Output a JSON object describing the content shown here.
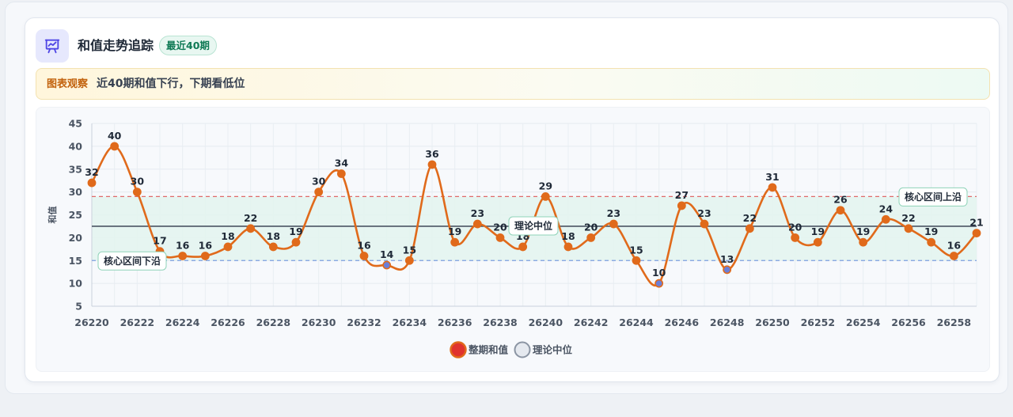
{
  "header": {
    "title": "和值走势追踪",
    "badge": "最近40期"
  },
  "observation": {
    "tag": "图表观察",
    "text": "近40期和值下行，下期看低位"
  },
  "icons": {
    "header": "presentation-chart-icon"
  },
  "colors": {
    "line": "#e06a1b",
    "point": "#e06a1b",
    "point_low": "#6b7fd8",
    "band": "#e3f5ee",
    "upper_line": "#e06a6a",
    "lower_line": "#7c9fe0",
    "median_line": "#4b5563"
  },
  "chart_data": {
    "type": "line",
    "ylabel": "和值",
    "xlabel": "",
    "ylim": [
      5,
      45
    ],
    "yticks": [
      5,
      10,
      15,
      20,
      25,
      30,
      35,
      40,
      45
    ],
    "xticks": [
      "26220",
      "26222",
      "26224",
      "26226",
      "26228",
      "26230",
      "26232",
      "26234",
      "26236",
      "26238",
      "26240",
      "26242",
      "26244",
      "26246",
      "26248",
      "26250",
      "26252",
      "26254",
      "26256",
      "26258"
    ],
    "x": [
      26220,
      26221,
      26222,
      26223,
      26224,
      26225,
      26226,
      26227,
      26228,
      26229,
      26230,
      26231,
      26232,
      26233,
      26234,
      26235,
      26236,
      26237,
      26238,
      26239,
      26240,
      26241,
      26242,
      26243,
      26244,
      26245,
      26246,
      26247,
      26248,
      26249,
      26250,
      26251,
      26252,
      26253,
      26254,
      26255,
      26256,
      26257,
      26258,
      26259
    ],
    "series": [
      {
        "name": "整期和值",
        "values": [
          32,
          40,
          30,
          17,
          16,
          16,
          18,
          22,
          18,
          19,
          30,
          34,
          16,
          14,
          15,
          36,
          19,
          23,
          20,
          18,
          29,
          18,
          20,
          23,
          15,
          10,
          27,
          23,
          13,
          22,
          31,
          20,
          19,
          26,
          19,
          24,
          22,
          19,
          16,
          21
        ]
      }
    ],
    "reference_lines": [
      {
        "label": "核心区间上沿",
        "value": 29
      },
      {
        "label": "理论中位",
        "value": 22.5
      },
      {
        "label": "核心区间下沿",
        "value": 15
      }
    ],
    "band": [
      15,
      29
    ],
    "legend": [
      {
        "label": "整期和值"
      },
      {
        "label": "理论中位"
      }
    ],
    "legend_position": "bottom",
    "grid": true
  }
}
